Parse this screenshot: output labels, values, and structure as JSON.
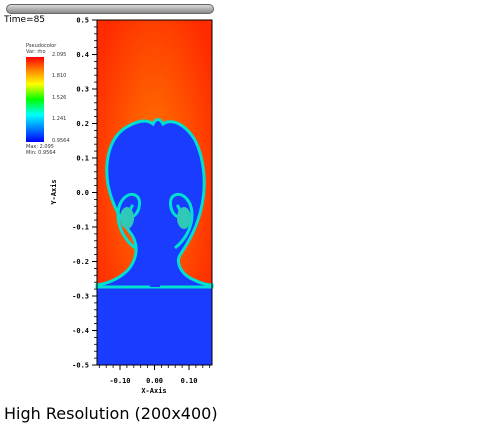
{
  "time_label": "Time=85",
  "legend": {
    "title_line1": "Pseudocolor",
    "title_line2": "Var: rho",
    "ticks": [
      "2.095",
      "1.810",
      "1.526",
      "1.241",
      "0.9564"
    ],
    "max_label": "Max:  2.095",
    "min_label": "Min:  0.9564"
  },
  "caption": "High Resolution (200x400)",
  "colors": {
    "heavy": "#ff2a00",
    "light": "#1a3cff",
    "interface": "#00e0d0"
  },
  "chart_data": {
    "type": "heatmap",
    "xlabel": "X-Axis",
    "ylabel": "Y-Axis",
    "xlim": [
      -0.1667,
      0.1667
    ],
    "ylim": [
      -0.5,
      0.5
    ],
    "x_ticks": [
      "-0.10",
      "0.00",
      "0.10"
    ],
    "y_ticks": [
      "0.5",
      "0.4",
      "0.3",
      "0.2",
      "0.1",
      "0.0",
      "-0.1",
      "-0.2",
      "-0.3",
      "-0.4",
      "-0.5"
    ],
    "variable": "rho",
    "value_range": [
      0.9564,
      2.095
    ]
  }
}
